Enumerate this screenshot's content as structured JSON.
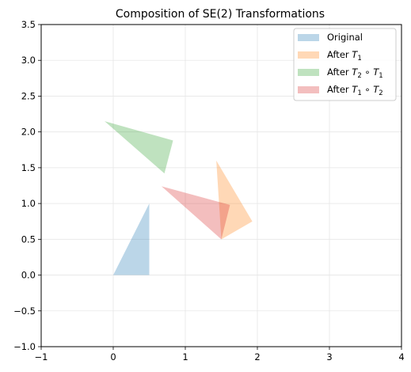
{
  "chart_data": {
    "type": "polygon",
    "title": "Composition of SE(2) Transformations",
    "xlabel": "",
    "ylabel": "",
    "xlim": [
      -1,
      4
    ],
    "ylim": [
      -1,
      3.5
    ],
    "xticks": [
      -1,
      0,
      1,
      2,
      3,
      4
    ],
    "yticks": [
      -1.0,
      -0.5,
      0.0,
      0.5,
      1.0,
      1.5,
      2.0,
      2.5,
      3.0,
      3.5
    ],
    "xtick_labels": [
      "−1",
      "0",
      "1",
      "2",
      "3",
      "4"
    ],
    "ytick_labels": [
      "−1.0",
      "−0.5",
      "0.0",
      "0.5",
      "1.0",
      "1.5",
      "2.0",
      "2.5",
      "3.0",
      "3.5"
    ],
    "grid": true,
    "legend_position": "top-right",
    "series": [
      {
        "name": "Original",
        "color": "#1f77b4",
        "opacity": 0.3,
        "points": [
          [
            0,
            0
          ],
          [
            0.5,
            0
          ],
          [
            0.5,
            1.0
          ]
        ]
      },
      {
        "name": "After T1",
        "legend_base": "After ",
        "legend_sub": "1",
        "color": "#ff7f0e",
        "opacity": 0.3,
        "points": [
          [
            1.5,
            0.5
          ],
          [
            1.93,
            0.75
          ],
          [
            1.43,
            1.6
          ]
        ]
      },
      {
        "name": "After T2 ∘ T1",
        "legend_base": "After ",
        "legend_sub": "2",
        "legend_sub2": "1",
        "color": "#2ca02c",
        "opacity": 0.3,
        "points": [
          [
            0.71,
            1.42
          ],
          [
            0.83,
            1.88
          ],
          [
            -0.12,
            2.15
          ]
        ]
      },
      {
        "name": "After T1 ∘ T2",
        "legend_base": "After ",
        "legend_sub": "1",
        "legend_sub2": "2",
        "color": "#d62728",
        "opacity": 0.3,
        "points": [
          [
            1.5,
            0.5
          ],
          [
            1.62,
            0.98
          ],
          [
            0.67,
            1.24
          ]
        ]
      }
    ]
  }
}
